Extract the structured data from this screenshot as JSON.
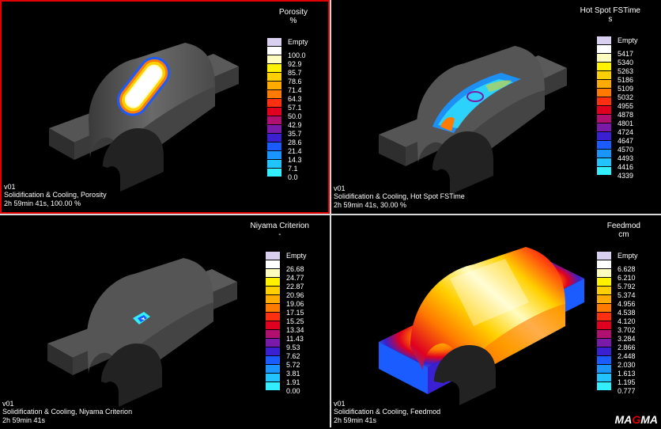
{
  "panels": [
    {
      "title": "Porosity",
      "unit": "%",
      "selected": true,
      "legend": [
        "Empty",
        "100.0",
        "92.9",
        "85.7",
        "78.6",
        "71.4",
        "64.3",
        "57.1",
        "50.0",
        "42.9",
        "35.7",
        "28.6",
        "21.4",
        "14.3",
        "7.1",
        "0.0"
      ],
      "info": [
        "v01",
        "Solidification & Cooling, Porosity",
        "2h 59min 41s, 100.00 %"
      ]
    },
    {
      "title": "Hot Spot FSTime",
      "unit": "s",
      "selected": false,
      "legend": [
        "Empty",
        "5417",
        "5340",
        "5263",
        "5186",
        "5109",
        "5032",
        "4955",
        "4878",
        "4801",
        "4724",
        "4647",
        "4570",
        "4493",
        "4416",
        "4339"
      ],
      "info": [
        "v01",
        "Solidification & Cooling, Hot Spot FSTime",
        "2h 59min 41s, 30.00 %"
      ]
    },
    {
      "title": "Niyama Criterion",
      "unit": "-",
      "selected": false,
      "legend": [
        "Empty",
        "26.68",
        "24.77",
        "22.87",
        "20.96",
        "19.06",
        "17.15",
        "15.25",
        "13.34",
        "11.43",
        "9.53",
        "7.62",
        "5.72",
        "3.81",
        "1.91",
        "0.00"
      ],
      "info": [
        "v01",
        "Solidification & Cooling, Niyama Criterion",
        "2h 59min 41s"
      ]
    },
    {
      "title": "Feedmod",
      "unit": "cm",
      "selected": false,
      "legend": [
        "Empty",
        "6.628",
        "6.210",
        "5.792",
        "5.374",
        "4.956",
        "4.538",
        "4.120",
        "3.702",
        "3.284",
        "2.866",
        "2.448",
        "2.030",
        "1.613",
        "1.195",
        "0.777"
      ],
      "info": [
        "v01",
        "Solidification & Cooling, Feedmod",
        "2h 59min 41s"
      ]
    }
  ],
  "legend_colors": [
    "#d9cfee",
    "#ffffff",
    "#fffcc0",
    "#fff200",
    "#ffd000",
    "#ffaa00",
    "#ff7a00",
    "#ff3010",
    "#e00020",
    "#b01070",
    "#7a1aa8",
    "#3a20d0",
    "#1a5cff",
    "#1a94ff",
    "#22c4ff",
    "#33eeff"
  ],
  "logo": {
    "pre": "MA",
    "accent": "G",
    "post": "MA"
  }
}
